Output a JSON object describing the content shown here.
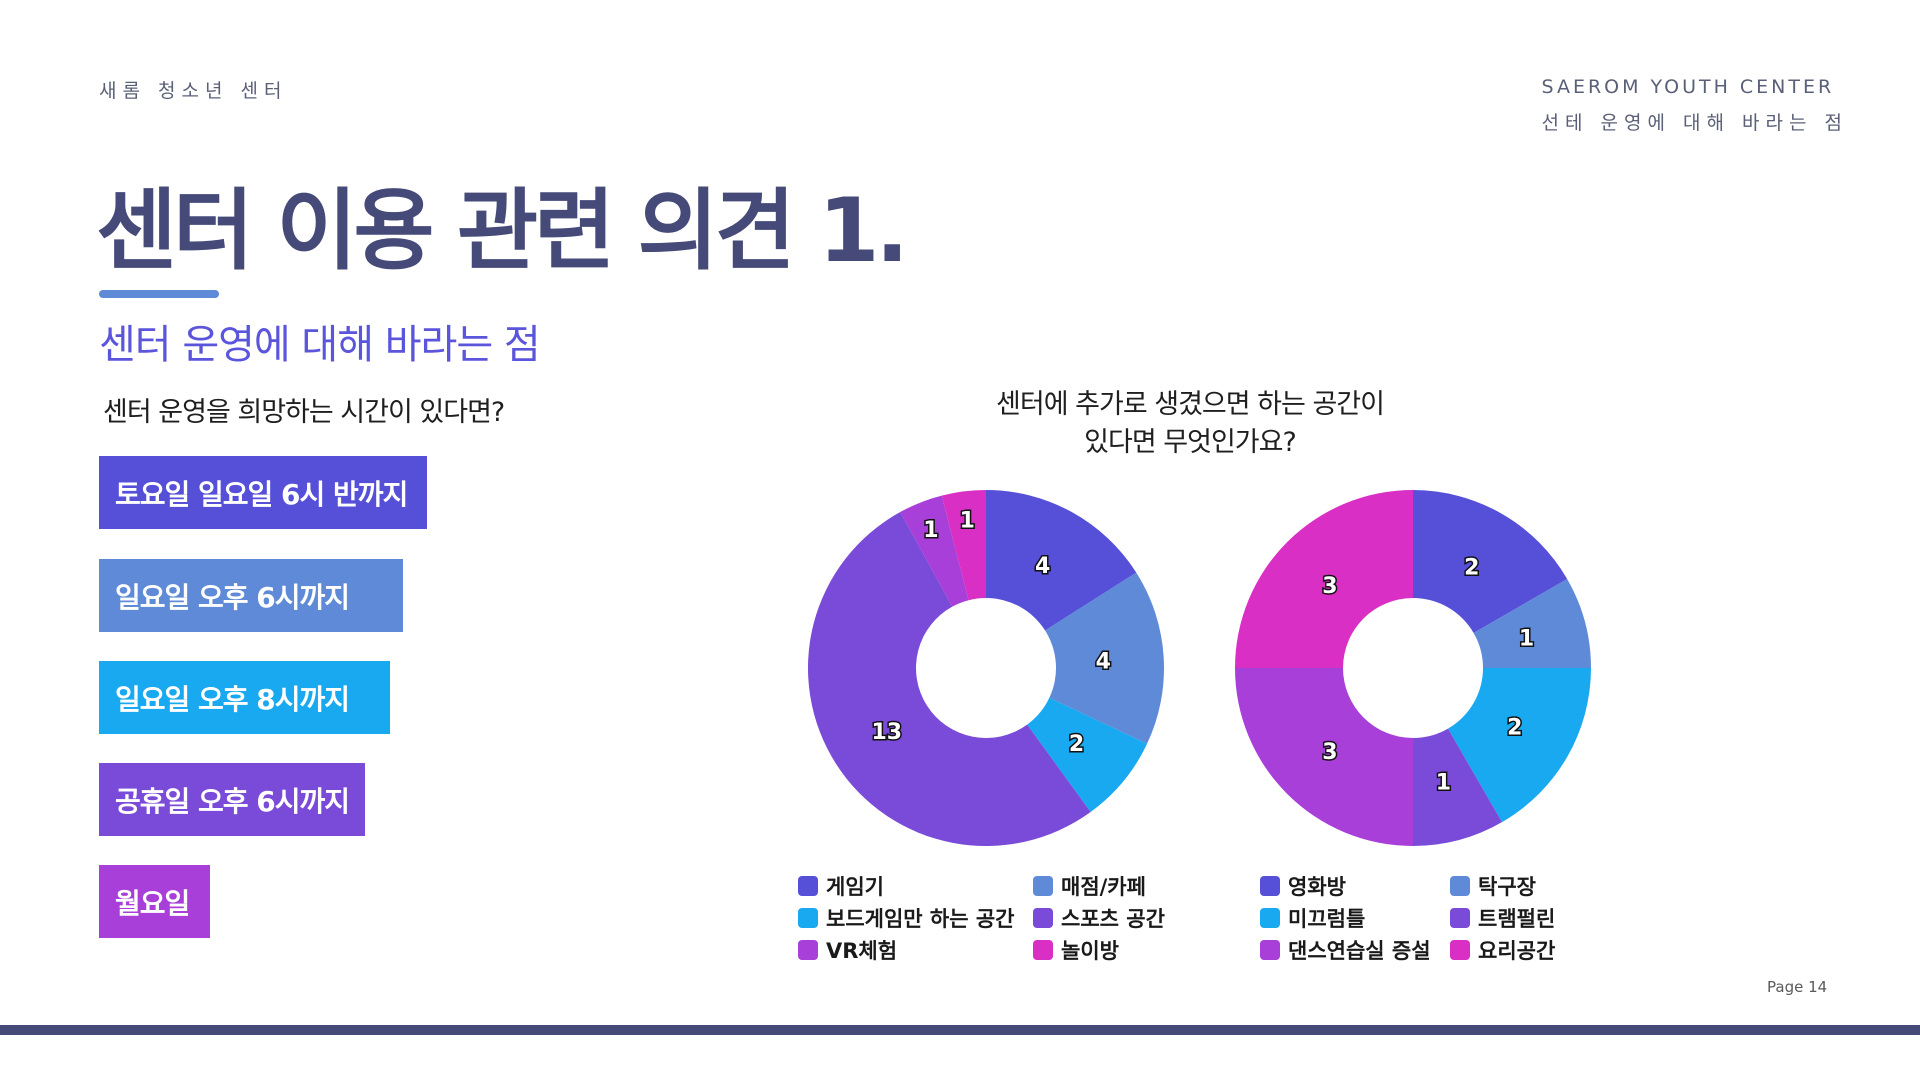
{
  "header": {
    "org_ko": "새롬 청소년 센터",
    "org_en": "SAEROM YOUTH CENTER",
    "org_en_sub": "선테 운영에 대해 바라는 점"
  },
  "title": "센터 이용 관련 의견 1.",
  "subtitle": "센터 운영에 대해 바라는 점",
  "question_left": "센터 운영을 희망하는 시간이 있다면?",
  "time_options": [
    {
      "label": "토요일 일요일 6시 반까지",
      "color": "#5650d9"
    },
    {
      "label": "일요일 오후 6시까지",
      "color": "#5f8ad8"
    },
    {
      "label": "일요일 오후 8시까지",
      "color": "#19a9f0"
    },
    {
      "label": "공휴일 오후 6시까지",
      "color": "#7a4ad8"
    },
    {
      "label": "월요일",
      "color": "#a83fd8"
    }
  ],
  "question_right": [
    "센터에 추가로 생겼으면 하는 공간이",
    "있다면 무엇인가요?"
  ],
  "colors": {
    "title": "#454a79",
    "accent": "#5f8ad8",
    "subtitle": "#5b55dc"
  },
  "chart_data": [
    {
      "type": "pie",
      "donut": true,
      "categories": [
        "게임기",
        "매점/카페",
        "보드게임만 하는 공간",
        "스포츠 공간",
        "VR체험",
        "놀이방"
      ],
      "values": [
        4,
        4,
        2,
        13,
        1,
        1
      ],
      "colors": [
        "#5650d9",
        "#5f8ad8",
        "#19a9f0",
        "#7a4ad8",
        "#a83fd8",
        "#d92fc4"
      ],
      "legend_position": "bottom"
    },
    {
      "type": "pie",
      "donut": true,
      "categories": [
        "영화방",
        "탁구장",
        "미끄럼틀",
        "트램펄린",
        "댄스연습실 증설",
        "요리공간"
      ],
      "values": [
        2,
        1,
        2,
        1,
        3,
        3
      ],
      "colors": [
        "#5650d9",
        "#5f8ad8",
        "#19a9f0",
        "#7a4ad8",
        "#a83fd8",
        "#d92fc4"
      ],
      "legend_position": "bottom"
    }
  ],
  "page": "Page 14"
}
